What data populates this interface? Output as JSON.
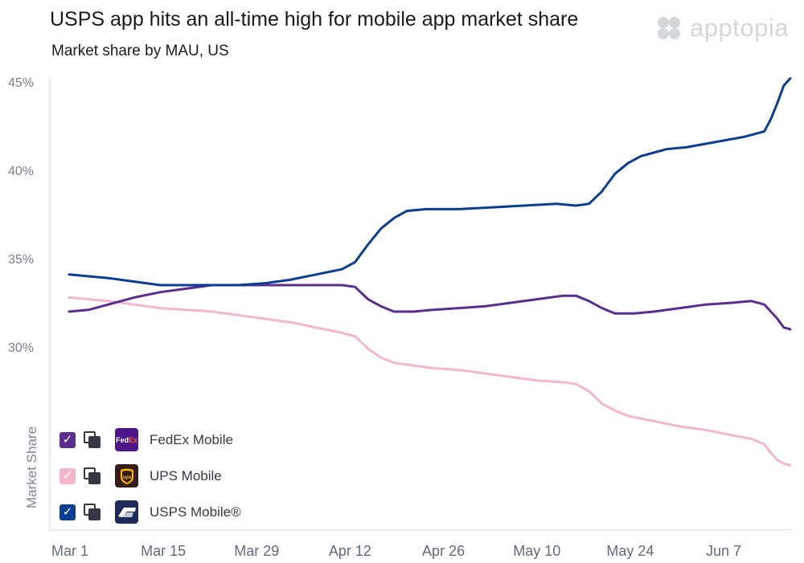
{
  "header": {
    "title": "USPS app hits an all-time high for mobile app market share",
    "subtitle": "Market share by MAU, US",
    "brand": "apptopia"
  },
  "legend": [
    {
      "label": "FedEx Mobile",
      "logo_text": "FedEx",
      "checked": true,
      "color": "#5b2d8e"
    },
    {
      "label": "UPS Mobile",
      "logo_text": "UPS",
      "checked": true,
      "color": "#f4b6cc"
    },
    {
      "label": "USPS Mobile®",
      "logo_text": "",
      "checked": true,
      "color": "#0b3d91"
    }
  ],
  "chart_data": {
    "type": "line",
    "title": "USPS app hits an all-time high for mobile app market share",
    "subtitle": "Market share by MAU, US",
    "ylabel": "Market Share",
    "xlabel": "",
    "x_ticks": [
      "Mar 1",
      "Mar 15",
      "Mar 29",
      "Apr 12",
      "Apr 26",
      "May 10",
      "May 24",
      "Jun 7"
    ],
    "y_ticks": [
      "30%",
      "35%",
      "40%",
      "45%"
    ],
    "ylim": [
      25,
      45.5
    ],
    "xlim": [
      0,
      111
    ],
    "grid": false,
    "legend_position": "bottom-left",
    "series": [
      {
        "name": "USPS Mobile®",
        "color": "#0b3d91",
        "points": [
          [
            0,
            34.1
          ],
          [
            3,
            34.0
          ],
          [
            6,
            33.9
          ],
          [
            10,
            33.7
          ],
          [
            14,
            33.5
          ],
          [
            18,
            33.5
          ],
          [
            22,
            33.5
          ],
          [
            26,
            33.5
          ],
          [
            30,
            33.6
          ],
          [
            34,
            33.8
          ],
          [
            38,
            34.1
          ],
          [
            42,
            34.4
          ],
          [
            44,
            34.8
          ],
          [
            46,
            35.8
          ],
          [
            48,
            36.7
          ],
          [
            50,
            37.3
          ],
          [
            52,
            37.7
          ],
          [
            55,
            37.8
          ],
          [
            60,
            37.8
          ],
          [
            65,
            37.9
          ],
          [
            70,
            38.0
          ],
          [
            75,
            38.1
          ],
          [
            78,
            38.0
          ],
          [
            80,
            38.1
          ],
          [
            82,
            38.8
          ],
          [
            84,
            39.8
          ],
          [
            86,
            40.4
          ],
          [
            88,
            40.8
          ],
          [
            90,
            41.0
          ],
          [
            92,
            41.2
          ],
          [
            95,
            41.3
          ],
          [
            98,
            41.5
          ],
          [
            101,
            41.7
          ],
          [
            104,
            41.9
          ],
          [
            107,
            42.2
          ],
          [
            108,
            42.9
          ],
          [
            109,
            43.8
          ],
          [
            110,
            44.8
          ],
          [
            111,
            45.2
          ],
          [
            114,
            45.6
          ],
          [
            111.5,
            45.4
          ]
        ]
      },
      {
        "name": "FedEx Mobile",
        "color": "#5b2d8e",
        "points": [
          [
            0,
            32.0
          ],
          [
            3,
            32.1
          ],
          [
            6,
            32.4
          ],
          [
            10,
            32.8
          ],
          [
            14,
            33.1
          ],
          [
            18,
            33.3
          ],
          [
            22,
            33.5
          ],
          [
            26,
            33.5
          ],
          [
            30,
            33.5
          ],
          [
            34,
            33.5
          ],
          [
            38,
            33.5
          ],
          [
            42,
            33.5
          ],
          [
            44,
            33.4
          ],
          [
            46,
            32.7
          ],
          [
            48,
            32.3
          ],
          [
            50,
            32.0
          ],
          [
            53,
            32.0
          ],
          [
            56,
            32.1
          ],
          [
            60,
            32.2
          ],
          [
            64,
            32.3
          ],
          [
            68,
            32.5
          ],
          [
            72,
            32.7
          ],
          [
            76,
            32.9
          ],
          [
            78,
            32.9
          ],
          [
            80,
            32.6
          ],
          [
            82,
            32.2
          ],
          [
            84,
            31.9
          ],
          [
            87,
            31.9
          ],
          [
            90,
            32.0
          ],
          [
            94,
            32.2
          ],
          [
            98,
            32.4
          ],
          [
            102,
            32.5
          ],
          [
            105,
            32.6
          ],
          [
            107,
            32.4
          ],
          [
            109,
            31.6
          ],
          [
            110,
            31.1
          ],
          [
            111,
            31.0
          ]
        ]
      },
      {
        "name": "UPS Mobile",
        "color": "#f4b6cc",
        "points": [
          [
            0,
            32.8
          ],
          [
            3,
            32.7
          ],
          [
            6,
            32.6
          ],
          [
            10,
            32.4
          ],
          [
            14,
            32.2
          ],
          [
            18,
            32.1
          ],
          [
            22,
            32.0
          ],
          [
            26,
            31.8
          ],
          [
            30,
            31.6
          ],
          [
            34,
            31.4
          ],
          [
            38,
            31.1
          ],
          [
            42,
            30.8
          ],
          [
            44,
            30.6
          ],
          [
            46,
            29.9
          ],
          [
            48,
            29.4
          ],
          [
            50,
            29.1
          ],
          [
            52,
            29.0
          ],
          [
            56,
            28.8
          ],
          [
            60,
            28.7
          ],
          [
            64,
            28.5
          ],
          [
            68,
            28.3
          ],
          [
            72,
            28.1
          ],
          [
            76,
            28.0
          ],
          [
            78,
            27.9
          ],
          [
            80,
            27.5
          ],
          [
            82,
            26.8
          ],
          [
            84,
            26.4
          ],
          [
            86,
            26.1
          ],
          [
            90,
            25.8
          ],
          [
            94,
            25.5
          ],
          [
            98,
            25.3
          ],
          [
            102,
            25.0
          ],
          [
            105,
            24.8
          ],
          [
            107,
            24.5
          ],
          [
            108,
            24.0
          ],
          [
            109,
            23.6
          ],
          [
            110,
            23.4
          ],
          [
            111,
            23.3
          ]
        ]
      }
    ]
  }
}
